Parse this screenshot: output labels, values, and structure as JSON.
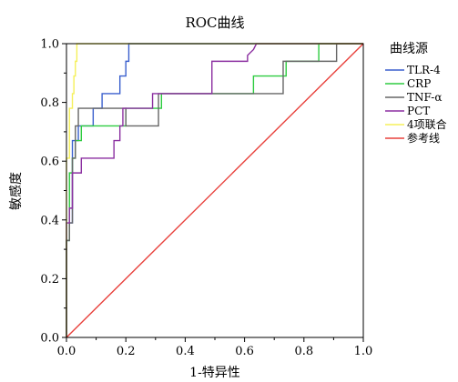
{
  "chart_data": {
    "type": "line",
    "title": "ROC曲线",
    "xlabel": "1-特异性",
    "ylabel": "敏感度",
    "xlim": [
      0,
      1
    ],
    "ylim": [
      0,
      1
    ],
    "x_ticks": [
      "0.0",
      "0.2",
      "0.4",
      "0.6",
      "0.8",
      "1.0"
    ],
    "y_ticks": [
      "0.0",
      "0.2",
      "0.4",
      "0.6",
      "0.8",
      "1.0"
    ],
    "grid": false,
    "legend_title": "曲线源",
    "legend_position": "right",
    "series": [
      {
        "name": "TLR-4",
        "color": "#3a5fcd",
        "points": [
          [
            0,
            0
          ],
          [
            0,
            0.33
          ],
          [
            0.01,
            0.33
          ],
          [
            0.01,
            0.39
          ],
          [
            0.02,
            0.39
          ],
          [
            0.02,
            0.44
          ],
          [
            0.02,
            0.61
          ],
          [
            0.02,
            0.67
          ],
          [
            0.04,
            0.67
          ],
          [
            0.04,
            0.72
          ],
          [
            0.09,
            0.72
          ],
          [
            0.09,
            0.78
          ],
          [
            0.12,
            0.78
          ],
          [
            0.12,
            0.83
          ],
          [
            0.18,
            0.83
          ],
          [
            0.18,
            0.89
          ],
          [
            0.2,
            0.89
          ],
          [
            0.2,
            0.94
          ],
          [
            0.21,
            0.94
          ],
          [
            0.21,
            1.0
          ],
          [
            1.0,
            1.0
          ]
        ]
      },
      {
        "name": "CRP",
        "color": "#2ecc40",
        "points": [
          [
            0,
            0
          ],
          [
            0,
            0.33
          ],
          [
            0.01,
            0.33
          ],
          [
            0.01,
            0.56
          ],
          [
            0.02,
            0.56
          ],
          [
            0.02,
            0.61
          ],
          [
            0.03,
            0.61
          ],
          [
            0.03,
            0.67
          ],
          [
            0.05,
            0.67
          ],
          [
            0.05,
            0.72
          ],
          [
            0.2,
            0.72
          ],
          [
            0.2,
            0.78
          ],
          [
            0.32,
            0.78
          ],
          [
            0.32,
            0.83
          ],
          [
            0.63,
            0.83
          ],
          [
            0.63,
            0.89
          ],
          [
            0.74,
            0.89
          ],
          [
            0.74,
            0.94
          ],
          [
            0.85,
            0.94
          ],
          [
            0.85,
            1.0
          ],
          [
            1.0,
            1.0
          ]
        ]
      },
      {
        "name": "TNF-α",
        "color": "#666666",
        "points": [
          [
            0,
            0
          ],
          [
            0,
            0.33
          ],
          [
            0.01,
            0.33
          ],
          [
            0.01,
            0.39
          ],
          [
            0.02,
            0.39
          ],
          [
            0.02,
            0.61
          ],
          [
            0.03,
            0.61
          ],
          [
            0.03,
            0.72
          ],
          [
            0.04,
            0.72
          ],
          [
            0.04,
            0.78
          ],
          [
            0.2,
            0.78
          ],
          [
            0.2,
            0.72
          ],
          [
            0.31,
            0.72
          ],
          [
            0.31,
            0.83
          ],
          [
            0.73,
            0.83
          ],
          [
            0.73,
            0.94
          ],
          [
            0.91,
            0.94
          ],
          [
            0.91,
            1.0
          ],
          [
            1.0,
            1.0
          ]
        ]
      },
      {
        "name": "PCT",
        "color": "#8b2fa0",
        "points": [
          [
            0,
            0
          ],
          [
            0,
            0.39
          ],
          [
            0.01,
            0.39
          ],
          [
            0.01,
            0.44
          ],
          [
            0.02,
            0.44
          ],
          [
            0.02,
            0.56
          ],
          [
            0.05,
            0.56
          ],
          [
            0.05,
            0.61
          ],
          [
            0.16,
            0.61
          ],
          [
            0.16,
            0.67
          ],
          [
            0.18,
            0.67
          ],
          [
            0.18,
            0.72
          ],
          [
            0.19,
            0.72
          ],
          [
            0.19,
            0.78
          ],
          [
            0.29,
            0.78
          ],
          [
            0.29,
            0.83
          ],
          [
            0.49,
            0.83
          ],
          [
            0.49,
            0.94
          ],
          [
            0.61,
            0.94
          ],
          [
            0.61,
            0.96
          ],
          [
            0.63,
            0.98
          ],
          [
            0.64,
            1.0
          ],
          [
            1.0,
            1.0
          ]
        ]
      },
      {
        "name": "4项联合",
        "color": "#f5f05a",
        "points": [
          [
            0,
            0
          ],
          [
            0,
            0.61
          ],
          [
            0.01,
            0.61
          ],
          [
            0.01,
            0.78
          ],
          [
            0.02,
            0.78
          ],
          [
            0.02,
            0.83
          ],
          [
            0.025,
            0.83
          ],
          [
            0.025,
            0.89
          ],
          [
            0.03,
            0.89
          ],
          [
            0.03,
            0.94
          ],
          [
            0.035,
            0.94
          ],
          [
            0.035,
            1.0
          ],
          [
            1.0,
            1.0
          ]
        ]
      },
      {
        "name": "参考线",
        "color": "#e8413c",
        "points": [
          [
            0,
            0
          ],
          [
            1,
            1
          ]
        ]
      }
    ]
  }
}
